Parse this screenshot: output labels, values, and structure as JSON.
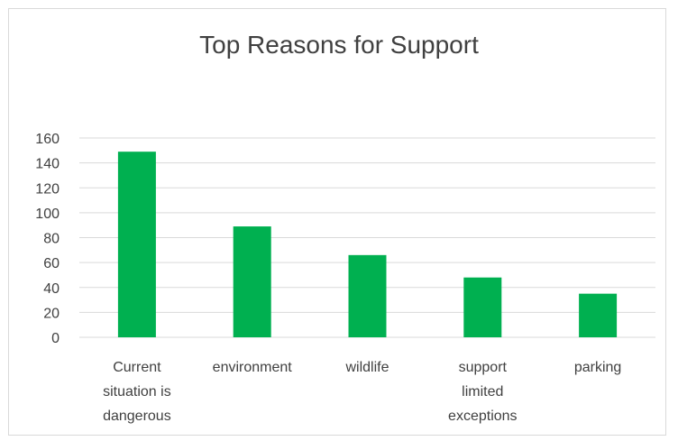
{
  "chart_data": {
    "type": "bar",
    "title": "Top Reasons for Support",
    "categories": [
      [
        "Current",
        "situation is",
        "dangerous"
      ],
      [
        "environment"
      ],
      [
        "wildlife"
      ],
      [
        "support",
        "limited",
        "exceptions"
      ],
      [
        "parking"
      ]
    ],
    "values": [
      149,
      89,
      66,
      48,
      35
    ],
    "ylim": [
      0,
      160
    ],
    "yticks": [
      0,
      20,
      40,
      60,
      80,
      100,
      120,
      140,
      160
    ],
    "grid": true,
    "legend": "none",
    "bar_color": "#00b050",
    "grid_color": "#d9d9d9",
    "text_color": "#404040"
  }
}
